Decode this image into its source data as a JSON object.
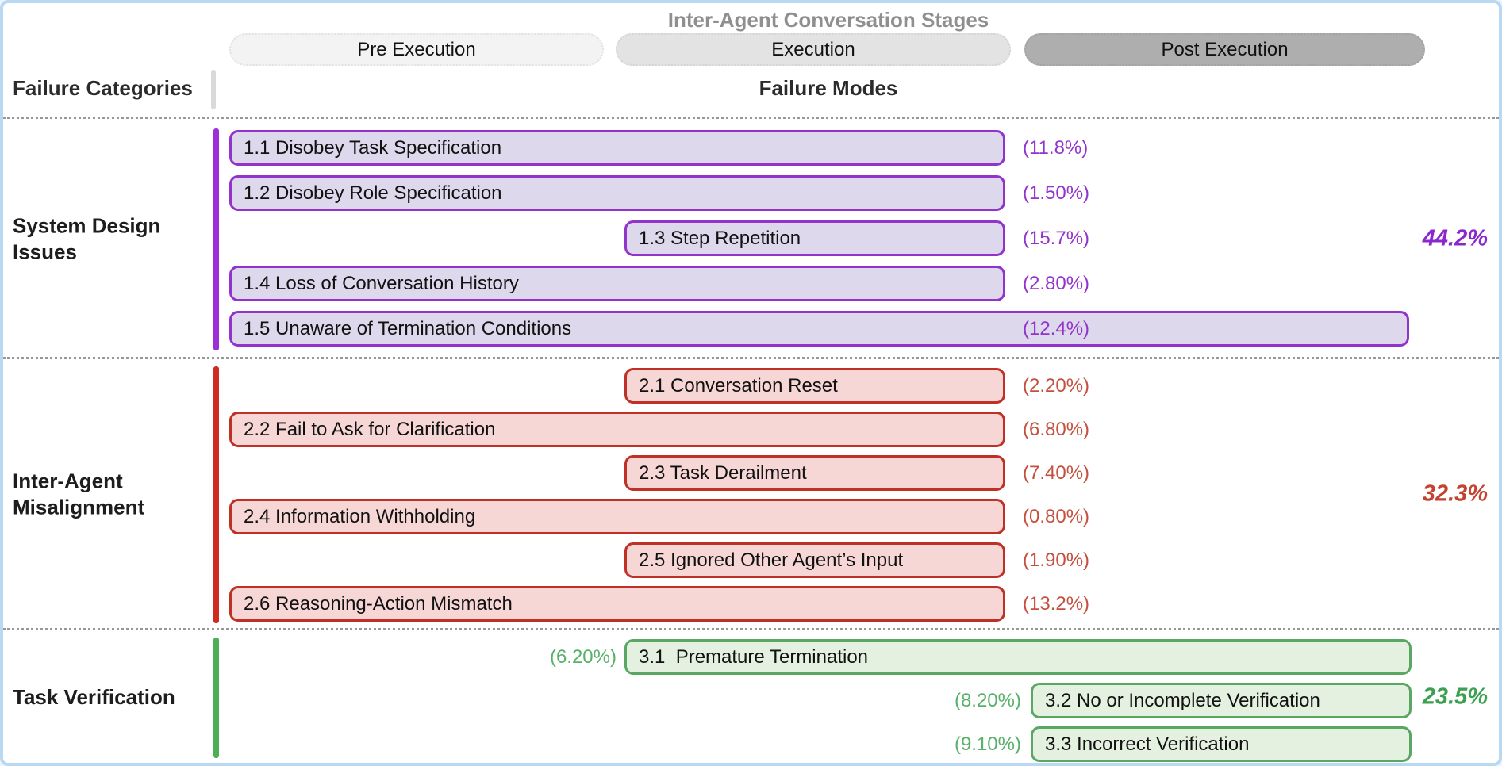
{
  "frame": {
    "border_color": "#b9d9f2",
    "background": "#ffffff"
  },
  "header": {
    "title": "Inter-Agent Conversation Stages",
    "title_color": "#8f8f8f",
    "stages": [
      {
        "label": "Pre Execution",
        "fill": "#f3f3f3"
      },
      {
        "label": "Execution",
        "fill": "#e3e3e3"
      },
      {
        "label": "Post Execution",
        "fill": "#aeaeae"
      }
    ],
    "failure_categories_label": "Failure Categories",
    "failure_modes_label": "Failure Modes"
  },
  "categories": [
    {
      "name": "System Design Issues",
      "total": "44.2%",
      "colors": {
        "accent": "#9d2fd6",
        "border": "#9233cc",
        "fill": "#ded8ed",
        "text": "#9233cc",
        "total": "#8b27cc"
      },
      "modes": [
        {
          "label": "1.1 Disobey Task Specification",
          "pct": "(11.8%)",
          "span": "pre_to_exec",
          "pct_side": "right"
        },
        {
          "label": "1.2 Disobey Role Specification",
          "pct": "(1.50%)",
          "span": "pre_to_exec",
          "pct_side": "right"
        },
        {
          "label": "1.3 Step Repetition",
          "pct": "(15.7%)",
          "span": "exec",
          "pct_side": "right"
        },
        {
          "label": "1.4 Loss of Conversation History",
          "pct": "(2.80%)",
          "span": "pre_to_exec",
          "pct_side": "right"
        },
        {
          "label": "1.5 Unaware of Termination Conditions",
          "pct": "(12.4%)",
          "span": "full",
          "pct_side": "inside"
        }
      ]
    },
    {
      "name": "Inter-Agent Misalignment",
      "total": "32.3%",
      "colors": {
        "accent": "#cf2b20",
        "border": "#bf3127",
        "fill": "#f7d6d6",
        "text": "#c4503e",
        "total": "#c2432f"
      },
      "modes": [
        {
          "label": "2.1 Conversation Reset",
          "pct": "(2.20%)",
          "span": "exec",
          "pct_side": "right"
        },
        {
          "label": "2.2 Fail to Ask for Clarification",
          "pct": "(6.80%)",
          "span": "pre_to_exec",
          "pct_side": "right"
        },
        {
          "label": "2.3 Task Derailment",
          "pct": "(7.40%)",
          "span": "exec",
          "pct_side": "right"
        },
        {
          "label": "2.4 Information Withholding",
          "pct": "(0.80%)",
          "span": "pre_to_exec",
          "pct_side": "right"
        },
        {
          "label": "2.5 Ignored Other Agent’s Input",
          "pct": "(1.90%)",
          "span": "exec",
          "pct_side": "right"
        },
        {
          "label": "2.6 Reasoning-Action Mismatch",
          "pct": "(13.2%)",
          "span": "pre_to_exec",
          "pct_side": "right"
        }
      ]
    },
    {
      "name": "Task Verification",
      "total": "23.5%",
      "colors": {
        "accent": "#4cae55",
        "border": "#5aa763",
        "fill": "#e4f0e0",
        "text": "#57b169",
        "total": "#3ba04f"
      },
      "modes": [
        {
          "label": "3.1  Premature Termination",
          "pct": "(6.20%)",
          "span": "exec_to_post",
          "pct_side": "left"
        },
        {
          "label": "3.2 No or Incomplete Verification",
          "pct": "(8.20%)",
          "span": "post",
          "pct_side": "left"
        },
        {
          "label": "3.3 Incorrect Verification",
          "pct": "(9.10%)",
          "span": "post",
          "pct_side": "left"
        }
      ]
    }
  ]
}
